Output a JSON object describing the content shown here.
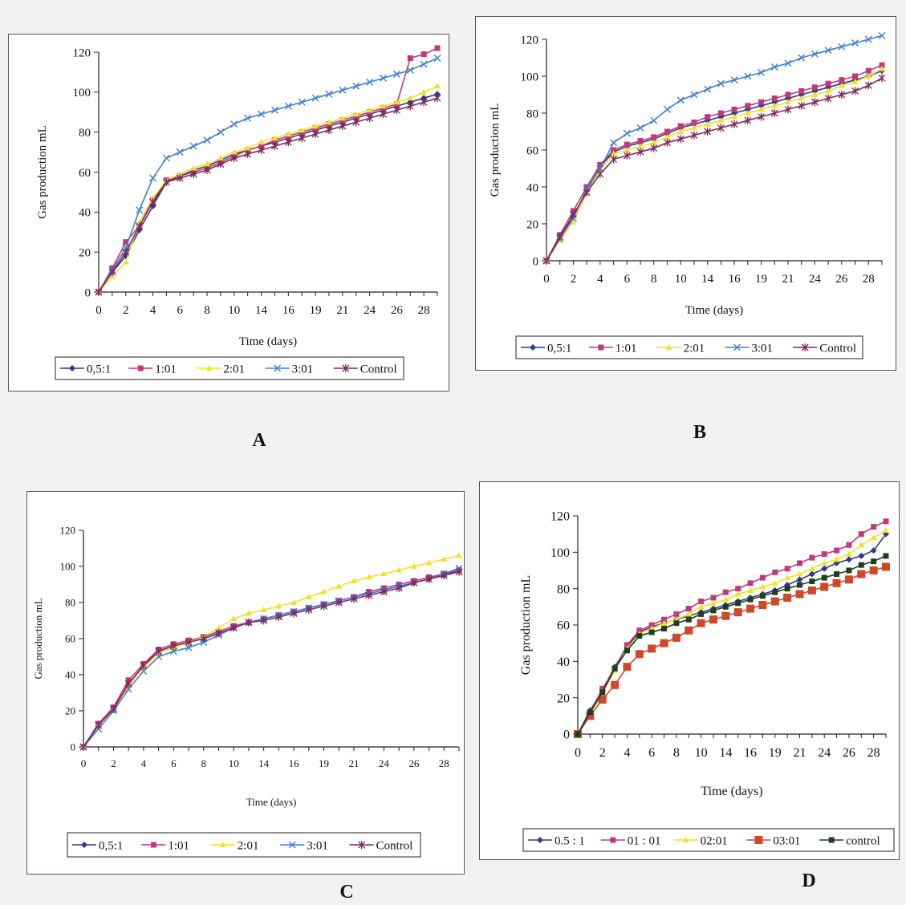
{
  "panel_letters": [
    "A",
    "B",
    "C",
    "D"
  ],
  "chart_data": [
    {
      "type": "line",
      "panel": "A",
      "ylabel": "Gas production mL",
      "xlabel": "Time (days)",
      "ylim": [
        0,
        120
      ],
      "yticks": [
        0,
        20,
        40,
        60,
        80,
        100,
        120
      ],
      "x_tick_labels": [
        "0",
        "2",
        "4",
        "6",
        "8",
        "10",
        "14",
        "16",
        "19",
        "21",
        "24",
        "26",
        "28"
      ],
      "n_points": 26,
      "legend_position": "bottom",
      "series": [
        {
          "name": "0,5:1",
          "color": "#2e3a8c",
          "marker": "diamond",
          "values": [
            0,
            10,
            18,
            31,
            43,
            55,
            58,
            61,
            63,
            66,
            69,
            71,
            73,
            75,
            77,
            79,
            81,
            83,
            85,
            87,
            89,
            91,
            93,
            95,
            97,
            99
          ]
        },
        {
          "name": "1:01",
          "color": "#c0397a",
          "marker": "square",
          "values": [
            0,
            12,
            25,
            33,
            46,
            56,
            58,
            60,
            62,
            65,
            68,
            71,
            73,
            76,
            78,
            80,
            82,
            84,
            86,
            88,
            90,
            92,
            94,
            117,
            119,
            122
          ]
        },
        {
          "name": "2:01",
          "color": "#f2e12a",
          "marker": "triangle",
          "values": [
            0,
            8,
            15,
            35,
            47,
            56,
            59,
            62,
            64,
            67,
            70,
            72,
            75,
            77,
            79,
            81,
            83,
            85,
            87,
            89,
            91,
            93,
            95,
            97,
            100,
            103
          ]
        },
        {
          "name": "3:01",
          "color": "#3d7fd6",
          "marker": "x",
          "values": [
            0,
            11,
            22,
            41,
            57,
            67,
            70,
            73,
            76,
            80,
            84,
            87,
            89,
            91,
            93,
            95,
            97,
            99,
            101,
            103,
            105,
            107,
            109,
            111,
            114,
            117
          ]
        },
        {
          "name": "Control",
          "color": "#7d2a5a",
          "marker": "star",
          "values": [
            0,
            10,
            20,
            33,
            45,
            55,
            57,
            59,
            61,
            64,
            67,
            69,
            71,
            73,
            75,
            77,
            79,
            81,
            83,
            85,
            87,
            89,
            91,
            93,
            95,
            97
          ]
        }
      ]
    },
    {
      "type": "line",
      "panel": "B",
      "ylabel": "Gas production mL",
      "xlabel": "Time (days)",
      "ylim": [
        0,
        120
      ],
      "yticks": [
        0,
        20,
        40,
        60,
        80,
        100,
        120
      ],
      "x_tick_labels": [
        "0",
        "2",
        "4",
        "6",
        "8",
        "10",
        "14",
        "16",
        "19",
        "21",
        "24",
        "26",
        "28"
      ],
      "n_points": 26,
      "legend_position": "bottom",
      "series": [
        {
          "name": "0,5:1",
          "color": "#2e3a8c",
          "marker": "diamond",
          "values": [
            0,
            13,
            24,
            38,
            51,
            59,
            62,
            64,
            66,
            69,
            72,
            74,
            76,
            78,
            80,
            82,
            84,
            86,
            88,
            90,
            92,
            94,
            96,
            98,
            100,
            103
          ]
        },
        {
          "name": "1:01",
          "color": "#c0397a",
          "marker": "square",
          "values": [
            0,
            14,
            27,
            40,
            52,
            60,
            63,
            65,
            67,
            70,
            73,
            75,
            78,
            80,
            82,
            84,
            86,
            88,
            90,
            92,
            94,
            96,
            98,
            100,
            103,
            106
          ]
        },
        {
          "name": "2:01",
          "color": "#f2e12a",
          "marker": "triangle",
          "values": [
            0,
            11,
            21,
            37,
            49,
            58,
            60,
            62,
            64,
            67,
            70,
            72,
            74,
            76,
            78,
            80,
            82,
            84,
            86,
            88,
            90,
            92,
            95,
            97,
            100,
            104
          ]
        },
        {
          "name": "3:01",
          "color": "#3d7fd6",
          "marker": "x",
          "values": [
            0,
            12,
            23,
            39,
            50,
            64,
            69,
            72,
            76,
            82,
            87,
            90,
            93,
            96,
            98,
            100,
            102,
            105,
            107,
            110,
            112,
            114,
            116,
            118,
            120,
            122
          ]
        },
        {
          "name": "Control",
          "color": "#7d2a5a",
          "marker": "star",
          "values": [
            0,
            13,
            25,
            37,
            47,
            55,
            57,
            59,
            61,
            64,
            66,
            68,
            70,
            72,
            74,
            76,
            78,
            80,
            82,
            84,
            86,
            88,
            90,
            92,
            95,
            99
          ]
        }
      ]
    },
    {
      "type": "line",
      "panel": "C",
      "ylabel": "Gas production mL",
      "xlabel": "Time (days)",
      "ylim": [
        0,
        120
      ],
      "yticks": [
        0,
        20,
        40,
        60,
        80,
        100,
        120
      ],
      "x_tick_labels": [
        "0",
        "2",
        "4",
        "6",
        "8",
        "10",
        "14",
        "16",
        "19",
        "21",
        "24",
        "26",
        "28"
      ],
      "n_points": 26,
      "legend_position": "bottom",
      "series": [
        {
          "name": "0,5:1",
          "color": "#2e3a8c",
          "marker": "diamond",
          "values": [
            0,
            13,
            21,
            35,
            45,
            53,
            56,
            58,
            60,
            63,
            66,
            69,
            71,
            73,
            75,
            77,
            79,
            81,
            83,
            85,
            87,
            89,
            91,
            93,
            95,
            98
          ]
        },
        {
          "name": "1:01",
          "color": "#c0397a",
          "marker": "square",
          "values": [
            0,
            13,
            22,
            37,
            46,
            54,
            57,
            59,
            61,
            64,
            67,
            69,
            71,
            73,
            75,
            77,
            79,
            81,
            83,
            86,
            88,
            90,
            92,
            94,
            96,
            98
          ]
        },
        {
          "name": "2:01",
          "color": "#f2e12a",
          "marker": "triangle",
          "values": [
            0,
            12,
            21,
            34,
            44,
            52,
            55,
            58,
            61,
            66,
            71,
            74,
            76,
            78,
            80,
            83,
            86,
            89,
            92,
            94,
            96,
            98,
            100,
            102,
            104,
            106
          ]
        },
        {
          "name": "3:01",
          "color": "#3d7fd6",
          "marker": "x",
          "values": [
            0,
            10,
            20,
            32,
            42,
            50,
            53,
            55,
            58,
            62,
            66,
            69,
            71,
            73,
            75,
            77,
            79,
            81,
            83,
            85,
            87,
            89,
            91,
            93,
            96,
            99
          ]
        },
        {
          "name": "Control",
          "color": "#7d2a5a",
          "marker": "star",
          "values": [
            0,
            12,
            21,
            35,
            45,
            53,
            56,
            58,
            60,
            63,
            66,
            69,
            70,
            72,
            74,
            76,
            78,
            80,
            82,
            84,
            86,
            88,
            91,
            93,
            95,
            97
          ]
        }
      ]
    },
    {
      "type": "line",
      "panel": "D",
      "ylabel": "Gas production mL",
      "xlabel": "Time (days)",
      "ylim": [
        0,
        120
      ],
      "yticks": [
        0,
        20,
        40,
        60,
        80,
        100,
        120
      ],
      "x_tick_labels": [
        "0",
        "2",
        "4",
        "6",
        "8",
        "10",
        "14",
        "16",
        "19",
        "21",
        "24",
        "26",
        "28"
      ],
      "n_points": 26,
      "legend_position": "bottom",
      "series": [
        {
          "name": "0.5 : 1",
          "color": "#2e3a8c",
          "marker": "diamond",
          "values": [
            0,
            13,
            24,
            37,
            48,
            56,
            59,
            61,
            63,
            65,
            67,
            69,
            71,
            73,
            75,
            77,
            79,
            82,
            85,
            88,
            91,
            94,
            96,
            98,
            101,
            110
          ]
        },
        {
          "name": "01 : 01",
          "color": "#c0397a",
          "marker": "square",
          "values": [
            0,
            12,
            25,
            36,
            49,
            57,
            60,
            63,
            66,
            69,
            73,
            75,
            78,
            80,
            83,
            86,
            89,
            91,
            94,
            97,
            99,
            101,
            104,
            110,
            114,
            117
          ]
        },
        {
          "name": "02:01",
          "color": "#f2e12a",
          "marker": "triangle",
          "values": [
            0,
            11,
            22,
            35,
            47,
            55,
            58,
            61,
            63,
            66,
            70,
            72,
            74,
            77,
            79,
            81,
            83,
            86,
            88,
            91,
            94,
            96,
            99,
            104,
            108,
            112
          ]
        },
        {
          "name": "03:01",
          "color": "#cc4a2b",
          "marker": "bigsquare",
          "values": [
            0,
            10,
            19,
            27,
            37,
            44,
            47,
            50,
            53,
            57,
            61,
            63,
            65,
            67,
            69,
            71,
            73,
            75,
            77,
            79,
            81,
            83,
            85,
            88,
            90,
            92
          ]
        },
        {
          "name": "control",
          "color": "#1f3d1f",
          "marker": "square",
          "values": [
            0,
            12,
            23,
            36,
            46,
            54,
            56,
            58,
            61,
            63,
            66,
            68,
            70,
            72,
            74,
            76,
            78,
            80,
            82,
            84,
            86,
            88,
            90,
            93,
            95,
            98
          ]
        }
      ]
    }
  ]
}
